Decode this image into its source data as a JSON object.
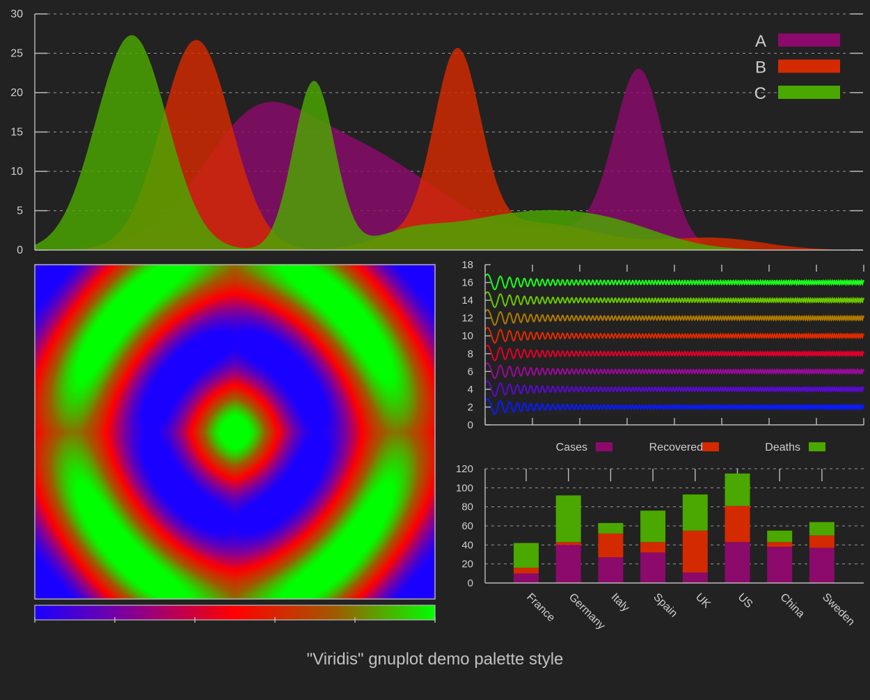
{
  "footer": {
    "title": "\"Viridis\" gnuplot demo palette style"
  },
  "colors": {
    "background": "#222222",
    "purple": "#8b0a6b",
    "red": "#d42a00",
    "green": "#4aa800",
    "axis": "#bdbdbd",
    "text": "#cfcfcf"
  },
  "chart_data": [
    {
      "id": "peaks",
      "type": "area",
      "ylim": [
        0,
        30
      ],
      "xlim": [
        0,
        100
      ],
      "y_ticks": [
        "0",
        "5",
        "10",
        "15",
        "20",
        "25",
        "30"
      ],
      "grid": true,
      "legend_position": "top-right",
      "series": [
        {
          "name": "A",
          "color": "#8b0a6b",
          "peaks": [
            [
              26,
              6,
              9
            ],
            [
              33,
              10,
              11
            ],
            [
              42,
              7,
              4
            ],
            [
              51,
              6,
              2
            ],
            [
              73,
              3,
              22
            ],
            [
              65,
              6,
              2.5
            ]
          ]
        },
        {
          "name": "B",
          "color": "#d42a00",
          "peaks": [
            [
              19.5,
              4.2,
              26.7
            ],
            [
              51,
              2.8,
              23.5
            ],
            [
              60,
              8,
              3.5
            ],
            [
              82,
              6,
              1.5
            ],
            [
              44,
              4,
              1.5
            ]
          ]
        },
        {
          "name": "C",
          "color": "#4aa800",
          "peaks": [
            [
              11.7,
              4.3,
              27.3
            ],
            [
              33.7,
              2.5,
              21.4
            ],
            [
              56,
              8,
              3.5
            ],
            [
              66,
              7,
              2.5
            ],
            [
              45,
              4,
              1.5
            ],
            [
              72,
              6,
              1.2
            ]
          ]
        }
      ]
    },
    {
      "id": "heatmap",
      "type": "heatmap",
      "colorbar": [
        "#1a00ff",
        "#8a0090",
        "#ff0000",
        "#a05a00",
        "#00ff00"
      ],
      "colorbar_ticks": 6
    },
    {
      "id": "waves",
      "type": "line",
      "ylim": [
        0,
        18
      ],
      "xlim": [
        0,
        100
      ],
      "y_ticks": [
        "0",
        "2",
        "4",
        "6",
        "8",
        "10",
        "12",
        "14",
        "16",
        "18"
      ],
      "x_tick_count": 9,
      "series": [
        {
          "offset": 2,
          "color": "#0a1aff"
        },
        {
          "offset": 4,
          "color": "#5a0ad0"
        },
        {
          "offset": 6,
          "color": "#9a0a9a"
        },
        {
          "offset": 8,
          "color": "#e0002a"
        },
        {
          "offset": 10,
          "color": "#e02a00"
        },
        {
          "offset": 12,
          "color": "#b07a00"
        },
        {
          "offset": 14,
          "color": "#6ac800"
        },
        {
          "offset": 16,
          "color": "#1aff1a"
        }
      ]
    },
    {
      "id": "bars",
      "type": "bar",
      "stacked": true,
      "categories": [
        "France",
        "Germany",
        "Italy",
        "Spain",
        "UK",
        "US",
        "China",
        "Sweden"
      ],
      "ylim": [
        0,
        120
      ],
      "y_ticks": [
        "0",
        "20",
        "40",
        "60",
        "80",
        "100",
        "120"
      ],
      "grid": true,
      "legend_position": "top",
      "series": [
        {
          "name": "Cases",
          "color": "#8b0a6b",
          "values": [
            10,
            40,
            27,
            32,
            11,
            43,
            38,
            37
          ]
        },
        {
          "name": "Recovered",
          "color": "#d42a00",
          "values": [
            6,
            3,
            25,
            11,
            44,
            38,
            5,
            13
          ]
        },
        {
          "name": "Deaths",
          "color": "#4aa800",
          "values": [
            26,
            49,
            11,
            33,
            38,
            34,
            12,
            14
          ]
        }
      ]
    }
  ]
}
